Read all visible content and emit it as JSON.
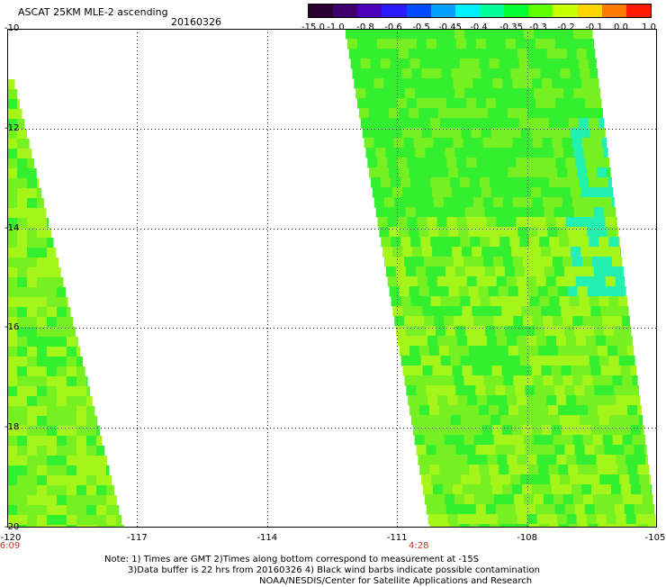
{
  "header": {
    "title": "ASCAT 25KM MLE-2 ascending",
    "date": "20160326"
  },
  "colorbar": {
    "labels": [
      "-15.0",
      "-1.0",
      "-0.8",
      "-0.6",
      "-0.5",
      "-0.45",
      "-0.4",
      "-0.35",
      "-0.3",
      "-0.2",
      "-0.1",
      "0.0",
      "1.0"
    ],
    "colors": [
      "#2a0030",
      "#3d006b",
      "#4a00b8",
      "#2a1cff",
      "#004cff",
      "#00a0ff",
      "#00f0ff",
      "#00ff9a",
      "#00ff30",
      "#60ff00",
      "#c8ff00",
      "#ffd400",
      "#ff7a00",
      "#ff1a00"
    ]
  },
  "map": {
    "lat_labels": [
      "-10",
      "-12",
      "-14",
      "-16",
      "-18",
      "-20"
    ],
    "lon_labels": [
      "-120",
      "-117",
      "-114",
      "-111",
      "-108",
      "-105"
    ],
    "time_labels": [
      {
        "text": "6:09",
        "lon": -120
      },
      {
        "text": "4:28",
        "lon": -110.5
      }
    ],
    "grid": true,
    "grid_style": "dotted",
    "colors": {
      "swath_main": "#76f020",
      "swath_green": "#34ee30",
      "swath_yellowgreen": "#a6f51a",
      "swath_cyan": "#22f0b0"
    }
  },
  "notes": [
    "Note: 1) Times are GMT 2)Times along bottom correspond to measurement at -15S",
    "3)Data buffer is 22 hrs from 20160326 4) Black wind barbs indicate possible contamination",
    "NOAA/NESDIS/Center for Satellite Applications and Research"
  ]
}
